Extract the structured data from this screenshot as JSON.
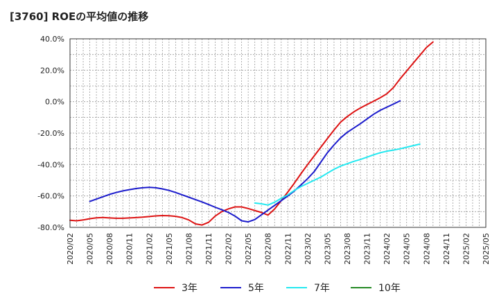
{
  "chart_data": {
    "type": "line",
    "title": "[3760]  ROEの平均値の推移",
    "xlabel": "",
    "ylabel": "",
    "ylim": [
      -80,
      40
    ],
    "y_ticks": [
      40,
      20,
      0,
      -20,
      -40,
      -60,
      -80
    ],
    "y_tick_labels": [
      "40.0%",
      "20.0%",
      "0.0%",
      "-20.0%",
      "-40.0%",
      "-60.0%",
      "-80.0%"
    ],
    "x_tick_labels": [
      "2020/02",
      "2020/05",
      "2020/08",
      "2020/11",
      "2021/02",
      "2021/05",
      "2021/08",
      "2021/11",
      "2022/02",
      "2022/05",
      "2022/08",
      "2022/11",
      "2023/02",
      "2023/05",
      "2023/08",
      "2023/11",
      "2024/02",
      "2024/05",
      "2024/08",
      "2024/11",
      "2025/02",
      "2025/05"
    ],
    "x_range": [
      0,
      63
    ],
    "grid": true,
    "legend_position": "bottom",
    "series": [
      {
        "name": "3年",
        "color": "#dd1111",
        "start_index": 0,
        "values": [
          -75.5,
          -75.8,
          -75.3,
          -74.5,
          -73.9,
          -73.7,
          -74.0,
          -74.2,
          -74.2,
          -74.0,
          -73.8,
          -73.5,
          -73.1,
          -72.7,
          -72.5,
          -72.6,
          -73.0,
          -73.8,
          -75.3,
          -77.8,
          -78.5,
          -76.8,
          -72.8,
          -70.0,
          -68.2,
          -67.0,
          -67.0,
          -68.0,
          -69.3,
          -70.5,
          -72.2,
          -68.3,
          -63.0,
          -57.5,
          -51.8,
          -45.8,
          -40.0,
          -34.5,
          -29.0,
          -23.5,
          -18.0,
          -13.0,
          -9.5,
          -6.5,
          -4.0,
          -1.8,
          0.3,
          2.5,
          5.0,
          9.0,
          14.5,
          19.5,
          24.5,
          29.5,
          34.5,
          38.0
        ]
      },
      {
        "name": "5年",
        "color": "#1a1acc",
        "start_index": 3,
        "values": [
          -63.5,
          -62.0,
          -60.5,
          -59.0,
          -57.8,
          -56.8,
          -56.0,
          -55.3,
          -54.8,
          -54.5,
          -54.8,
          -55.5,
          -56.5,
          -57.8,
          -59.3,
          -60.8,
          -62.3,
          -63.8,
          -65.5,
          -67.2,
          -68.8,
          -70.5,
          -72.8,
          -75.8,
          -76.5,
          -75.0,
          -72.0,
          -69.0,
          -66.0,
          -63.0,
          -60.0,
          -56.8,
          -53.0,
          -49.0,
          -44.5,
          -38.5,
          -32.5,
          -27.5,
          -23.0,
          -19.5,
          -16.8,
          -14.0,
          -11.0,
          -8.0,
          -5.5,
          -3.5,
          -1.5,
          0.5
        ]
      },
      {
        "name": "7年",
        "color": "#22e8f0",
        "start_index": 28,
        "values": [
          -64.5,
          -65.0,
          -65.8,
          -64.0,
          -61.5,
          -59.3,
          -56.5,
          -54.0,
          -52.0,
          -50.0,
          -48.0,
          -45.5,
          -43.0,
          -41.0,
          -39.5,
          -38.0,
          -36.8,
          -35.3,
          -33.8,
          -32.5,
          -31.5,
          -30.8,
          -30.0,
          -29.0,
          -28.0,
          -27.0
        ]
      },
      {
        "name": "10年",
        "color": "#228822",
        "start_index": 0,
        "values": []
      }
    ]
  }
}
